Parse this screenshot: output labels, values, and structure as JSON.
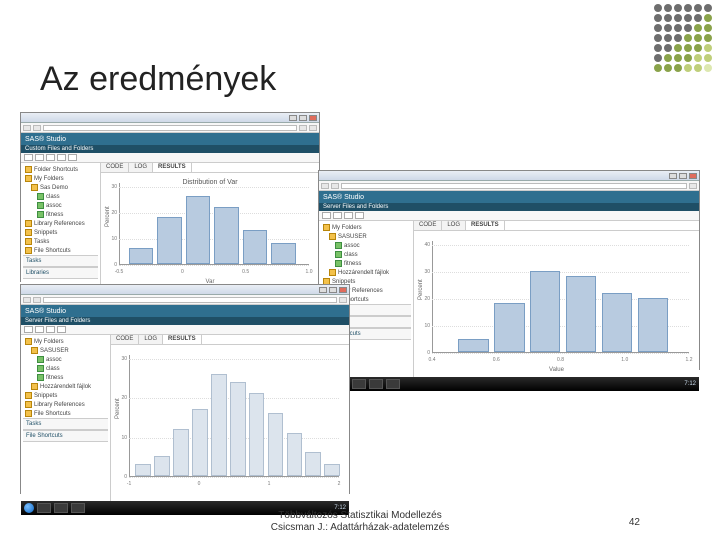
{
  "slide": {
    "title": "Az eredmények",
    "footer_line1": "Többváltozós Statisztikai Modellezés",
    "footer_line2": "Csicsman J.: Adattárházak-adatelemzés",
    "page_number": "42"
  },
  "decor_dots": {
    "rows": 7,
    "cols": 6,
    "colors": [
      "#6e6e6e",
      "#6e6e6e",
      "#6e6e6e",
      "#6e6e6e",
      "#6e6e6e",
      "#6e6e6e",
      "#6e6e6e",
      "#6e6e6e",
      "#6e6e6e",
      "#6e6e6e",
      "#6e6e6e",
      "#8aa34a",
      "#6e6e6e",
      "#6e6e6e",
      "#6e6e6e",
      "#6e6e6e",
      "#8aa34a",
      "#8aa34a",
      "#6e6e6e",
      "#6e6e6e",
      "#6e6e6e",
      "#8aa34a",
      "#8aa34a",
      "#8aa34a",
      "#6e6e6e",
      "#6e6e6e",
      "#8aa34a",
      "#8aa34a",
      "#8aa34a",
      "#bfcf7a",
      "#6e6e6e",
      "#8aa34a",
      "#8aa34a",
      "#8aa34a",
      "#bfcf7a",
      "#bfcf7a",
      "#8aa34a",
      "#8aa34a",
      "#8aa34a",
      "#bfcf7a",
      "#bfcf7a",
      "#dde8b0"
    ]
  },
  "shots": {
    "app_name": "SAS® Studio",
    "subhead1": "Custom Files and Folders",
    "subhead2": "Server Files and Folders",
    "tree_items": [
      {
        "label": "Folder Shortcuts",
        "icon": "fld",
        "lv": 1
      },
      {
        "label": "My Folders",
        "icon": "fld",
        "lv": 1
      },
      {
        "label": "Sas Demo",
        "icon": "fld",
        "lv": 2
      },
      {
        "label": "class",
        "icon": "tbl",
        "lv": 3
      },
      {
        "label": "assoc",
        "icon": "tbl",
        "lv": 3
      },
      {
        "label": "fitness",
        "icon": "tbl",
        "lv": 3
      },
      {
        "label": "Library References",
        "icon": "fld",
        "lv": 1
      },
      {
        "label": "Snippets",
        "icon": "fld",
        "lv": 1
      },
      {
        "label": "Tasks",
        "icon": "fld",
        "lv": 1
      },
      {
        "label": "File Shortcuts",
        "icon": "fld",
        "lv": 1
      }
    ],
    "tree_items_b": [
      {
        "label": "My Folders",
        "icon": "fld",
        "lv": 1
      },
      {
        "label": "SASUSER",
        "icon": "fld",
        "lv": 2
      },
      {
        "label": "assoc",
        "icon": "tbl",
        "lv": 3
      },
      {
        "label": "class",
        "icon": "tbl",
        "lv": 3
      },
      {
        "label": "fitness",
        "icon": "tbl",
        "lv": 3
      },
      {
        "label": "Hozzárendelt fájlok",
        "icon": "fld",
        "lv": 2
      },
      {
        "label": "Snippets",
        "icon": "fld",
        "lv": 1
      },
      {
        "label": "Library References",
        "icon": "fld",
        "lv": 1
      },
      {
        "label": "File Shortcuts",
        "icon": "fld",
        "lv": 1
      }
    ],
    "tabs": {
      "code": "CODE",
      "log": "LOG",
      "results": "RESULTS"
    },
    "ylabel": "Percent",
    "chart1": {
      "title": "Distribution of Var",
      "xlabel": "Var",
      "ylim": [
        0,
        30
      ],
      "yticks": [
        0,
        10,
        20,
        30
      ],
      "xticks": [
        "-0.5",
        "0",
        "0.5",
        "1.0"
      ],
      "bars": [
        {
          "x": 0.05,
          "h": 6
        },
        {
          "x": 0.2,
          "h": 18
        },
        {
          "x": 0.35,
          "h": 26
        },
        {
          "x": 0.5,
          "h": 22
        },
        {
          "x": 0.65,
          "h": 13
        },
        {
          "x": 0.8,
          "h": 8
        }
      ],
      "bar_w": 0.13
    },
    "chart2": {
      "title": "",
      "xlabel": "Value",
      "ylim": [
        0,
        40
      ],
      "yticks": [
        0,
        10,
        20,
        30,
        40
      ],
      "xticks": [
        "0.4",
        "0.6",
        "0.8",
        "1.0",
        "1.2"
      ],
      "bars": [
        {
          "x": 0.1,
          "h": 5
        },
        {
          "x": 0.24,
          "h": 18
        },
        {
          "x": 0.38,
          "h": 30
        },
        {
          "x": 0.52,
          "h": 28
        },
        {
          "x": 0.66,
          "h": 22
        },
        {
          "x": 0.8,
          "h": 20
        }
      ],
      "bar_w": 0.12
    },
    "chart3": {
      "title": "",
      "xlabel": "",
      "ylim": [
        0,
        30
      ],
      "yticks": [
        0,
        10,
        20,
        30
      ],
      "xticks": [
        "-1",
        "0",
        "1",
        "2"
      ],
      "bars": [
        {
          "x": 0.03,
          "h": 3
        },
        {
          "x": 0.12,
          "h": 5
        },
        {
          "x": 0.21,
          "h": 12
        },
        {
          "x": 0.3,
          "h": 17
        },
        {
          "x": 0.39,
          "h": 26
        },
        {
          "x": 0.48,
          "h": 24
        },
        {
          "x": 0.57,
          "h": 21
        },
        {
          "x": 0.66,
          "h": 16
        },
        {
          "x": 0.75,
          "h": 11
        },
        {
          "x": 0.84,
          "h": 6
        },
        {
          "x": 0.93,
          "h": 3
        }
      ],
      "bar_w": 0.075
    },
    "clock": "7:12",
    "section_labels": {
      "tasks": "Tasks",
      "snips": "Snippets",
      "libs": "Libraries",
      "short": "File Shortcuts"
    }
  }
}
